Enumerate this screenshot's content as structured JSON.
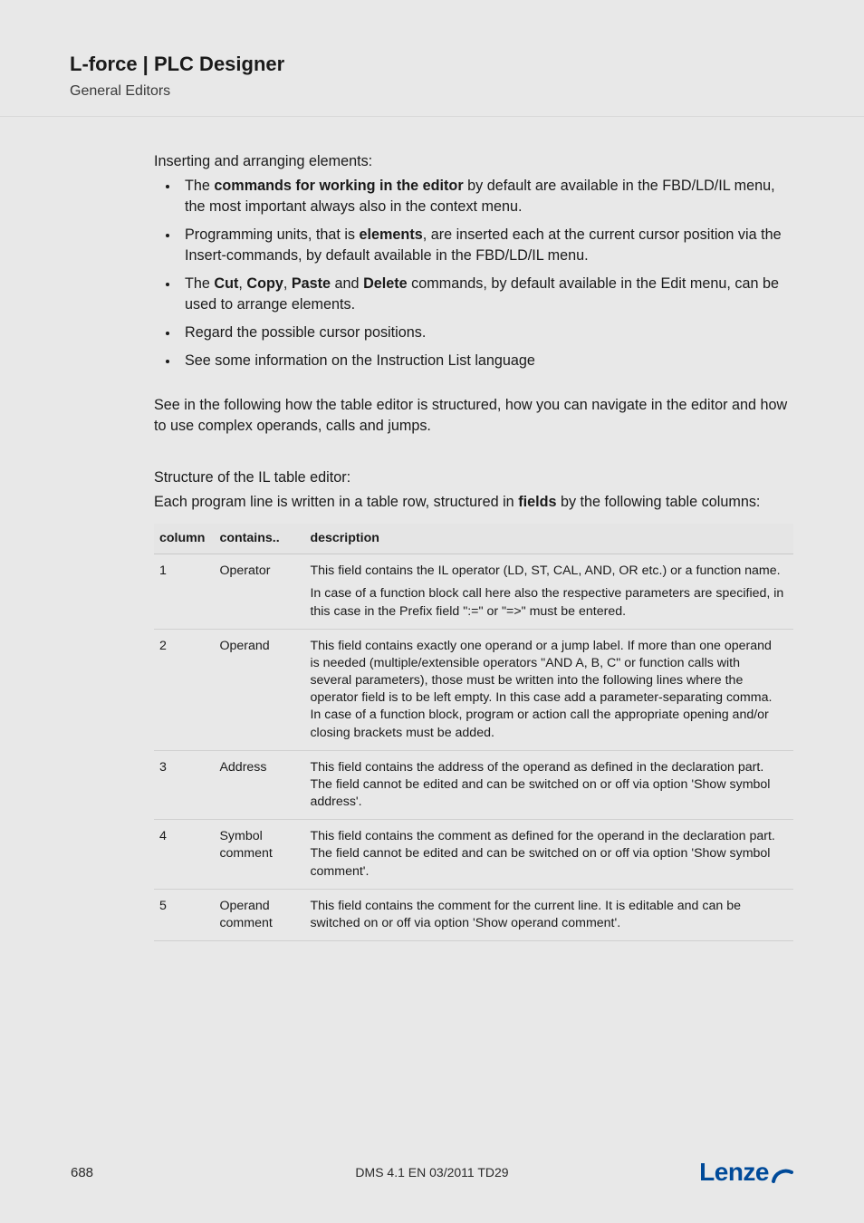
{
  "header": {
    "title": "L-force | PLC Designer",
    "subtitle": "General Editors"
  },
  "intro": {
    "heading": "Inserting and arranging elements:",
    "bullets": [
      {
        "pre": "The  ",
        "bold": "commands for working in the editor",
        "post": " by default are available in the FBD/LD/IL menu, the most important always also in the context menu."
      },
      {
        "pre": "Programming units, that is ",
        "bold": "elements",
        "post": ", are inserted each at the current cursor position via the Insert-commands, by default available in the FBD/LD/IL menu."
      },
      {
        "pre": "The ",
        "bold": "Cut",
        "mid1": ", ",
        "bold2": "Copy",
        "mid2": ", ",
        "bold3": "Paste",
        "mid3": " and ",
        "bold4": "Delete",
        "post": " commands, by default available in the Edit menu, can be used to arrange elements."
      },
      {
        "pre": "Regard the possible cursor positions.",
        "bold": "",
        "post": ""
      },
      {
        "pre": "See some information on the Instruction List language",
        "bold": "",
        "post": ""
      }
    ],
    "follow": "See in the following how the table editor is structured, how you can navigate in the editor and how to use complex operands, calls and jumps."
  },
  "structure": {
    "heading": "Structure of the IL table editor:",
    "lead_pre": "Each program line is written in a table row, structured in ",
    "lead_bold": "fields",
    "lead_post": " by the following table columns:"
  },
  "table": {
    "headers": {
      "c1": "column",
      "c2": "contains..",
      "c3": "description"
    },
    "rows": [
      {
        "num": "1",
        "contains": "Operator",
        "desc": [
          "This field contains the IL operator (LD, ST, CAL, AND, OR etc.) or a function name.",
          "In case of a function block call here also the respective parameters are specified, in this case in the Prefix field \":=\" or \"=>\" must be entered."
        ]
      },
      {
        "num": "2",
        "contains": "Operand",
        "desc": [
          "This field contains exactly one operand or a jump label. If more than one operand is needed (multiple/extensible operators \"AND A, B, C\" or function calls with several parameters), those must be written into the following lines where the operator field is to be left empty. In this case add a parameter-separating comma. In case of a function block, program or action call the appropriate opening and/or closing brackets must be added."
        ]
      },
      {
        "num": "3",
        "contains": "Address",
        "desc": [
          "This field contains the address of the operand as defined in the declaration part. The field cannot be edited and can be switched on or off via option 'Show symbol address'."
        ]
      },
      {
        "num": "4",
        "contains": "Symbol comment",
        "desc": [
          "This field contains the comment as defined for the operand in the declaration part. The field cannot be edited and can be switched on or off via option 'Show symbol comment'."
        ]
      },
      {
        "num": "5",
        "contains": "Operand comment",
        "desc": [
          "This field contains the comment for the current line. It is editable and can be switched on or off via option 'Show operand comment'."
        ]
      }
    ]
  },
  "footer": {
    "page": "688",
    "docid": "DMS 4.1 EN 03/2011 TD29",
    "logo_text": "Lenze",
    "logo_color": "#004a99"
  }
}
